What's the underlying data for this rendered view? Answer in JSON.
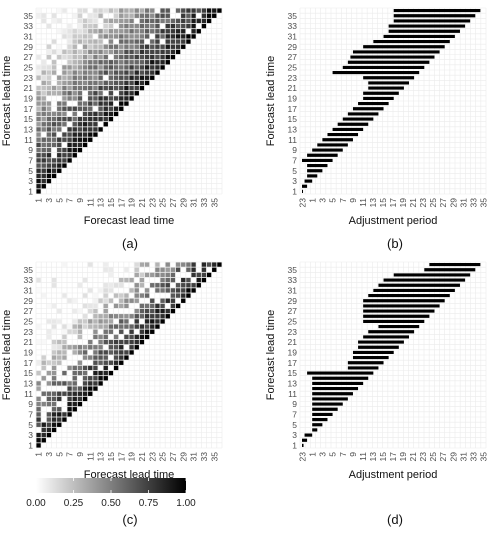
{
  "panel_labels": [
    "(a)",
    "(b)",
    "(c)",
    "(d)"
  ],
  "legend": {
    "ticks": [
      "0.00",
      "0.25",
      "0.50",
      "0.75",
      "1.00"
    ],
    "values": [
      0,
      0.25,
      0.5,
      0.75,
      1.0
    ],
    "color_low": "#ffffff",
    "color_high": "#000000"
  },
  "chart_data": [
    {
      "type": "heatmap",
      "panel": "(a)",
      "xlabel": "Forecast lead time",
      "ylabel": "Forecast lead time",
      "x_ticks": [
        "1",
        "3",
        "5",
        "7",
        "9",
        "11",
        "13",
        "15",
        "17",
        "19",
        "21",
        "23",
        "25",
        "27",
        "29",
        "31",
        "33",
        "35"
      ],
      "y_ticks": [
        "1",
        "3",
        "5",
        "7",
        "9",
        "11",
        "13",
        "15",
        "17",
        "19",
        "21",
        "23",
        "25",
        "27",
        "29",
        "31",
        "33",
        "35"
      ],
      "xlim": [
        1,
        36
      ],
      "ylim": [
        1,
        36
      ],
      "value_range": [
        0,
        1
      ],
      "grid": true,
      "description_of_values": "lower-triangle: value 1.0 on diagonal, decreasing with distance from diagonal"
    },
    {
      "type": "bar",
      "panel": "(b)",
      "orientation": "horizontal-range",
      "xlabel": "Adjustment period",
      "ylabel": "Forecast lead time",
      "x_ticks": [
        "23",
        "1",
        "3",
        "5",
        "7",
        "9",
        "11",
        "13",
        "15",
        "17",
        "19",
        "21",
        "23",
        "25",
        "27",
        "29",
        "31",
        "33",
        "35"
      ],
      "y_ticks": [
        "1",
        "3",
        "5",
        "7",
        "9",
        "11",
        "13",
        "15",
        "17",
        "19",
        "21",
        "23",
        "25",
        "27",
        "29",
        "31",
        "33",
        "35"
      ],
      "ylim": [
        1,
        36
      ],
      "grid": true,
      "rows": [
        {
          "lead": 1,
          "start": 0.0,
          "end": 0.2
        },
        {
          "lead": 2,
          "start": 0.0,
          "end": 1.0
        },
        {
          "lead": 3,
          "start": 0.5,
          "end": 2.0
        },
        {
          "lead": 4,
          "start": 1.0,
          "end": 3.0
        },
        {
          "lead": 5,
          "start": 1.0,
          "end": 4.0
        },
        {
          "lead": 6,
          "start": 1.0,
          "end": 5.0
        },
        {
          "lead": 7,
          "start": 0.0,
          "end": 6.0
        },
        {
          "lead": 8,
          "start": 1.0,
          "end": 7.0
        },
        {
          "lead": 9,
          "start": 2.0,
          "end": 8.0
        },
        {
          "lead": 10,
          "start": 3.0,
          "end": 9.0
        },
        {
          "lead": 11,
          "start": 4.0,
          "end": 10.0
        },
        {
          "lead": 12,
          "start": 5.0,
          "end": 11.0
        },
        {
          "lead": 13,
          "start": 6.0,
          "end": 12.0
        },
        {
          "lead": 14,
          "start": 7.0,
          "end": 13.0
        },
        {
          "lead": 15,
          "start": 8.0,
          "end": 14.0
        },
        {
          "lead": 16,
          "start": 9.0,
          "end": 15.0
        },
        {
          "lead": 17,
          "start": 10.0,
          "end": 16.0
        },
        {
          "lead": 18,
          "start": 11.0,
          "end": 17.0
        },
        {
          "lead": 19,
          "start": 12.0,
          "end": 18.0
        },
        {
          "lead": 20,
          "start": 12.0,
          "end": 19.0
        },
        {
          "lead": 21,
          "start": 13.0,
          "end": 20.0
        },
        {
          "lead": 22,
          "start": 13.0,
          "end": 21.0
        },
        {
          "lead": 23,
          "start": 12.0,
          "end": 22.0
        },
        {
          "lead": 24,
          "start": 6.0,
          "end": 23.0
        },
        {
          "lead": 25,
          "start": 8.0,
          "end": 24.0
        },
        {
          "lead": 26,
          "start": 9.0,
          "end": 25.0
        },
        {
          "lead": 27,
          "start": 9.5,
          "end": 26.0
        },
        {
          "lead": 28,
          "start": 10.0,
          "end": 27.0
        },
        {
          "lead": 29,
          "start": 12.0,
          "end": 28.0
        },
        {
          "lead": 30,
          "start": 14.0,
          "end": 29.0
        },
        {
          "lead": 31,
          "start": 16.0,
          "end": 30.0
        },
        {
          "lead": 32,
          "start": 17.0,
          "end": 31.0
        },
        {
          "lead": 33,
          "start": 17.0,
          "end": 32.0
        },
        {
          "lead": 34,
          "start": 18.0,
          "end": 33.0
        },
        {
          "lead": 35,
          "start": 18.0,
          "end": 34.0
        },
        {
          "lead": 36,
          "start": 18.0,
          "end": 35.0
        }
      ]
    },
    {
      "type": "heatmap",
      "panel": "(c)",
      "xlabel": "Forecast lead time",
      "ylabel": "Forecast lead time",
      "x_ticks": [
        "1",
        "3",
        "5",
        "7",
        "9",
        "11",
        "13",
        "15",
        "17",
        "19",
        "21",
        "23",
        "25",
        "27",
        "29",
        "31",
        "33",
        "35"
      ],
      "y_ticks": [
        "1",
        "3",
        "5",
        "7",
        "9",
        "11",
        "13",
        "15",
        "17",
        "19",
        "21",
        "23",
        "25",
        "27",
        "29",
        "31",
        "33",
        "35"
      ],
      "xlim": [
        1,
        36
      ],
      "ylim": [
        1,
        36
      ],
      "value_range": [
        0,
        1
      ],
      "grid": true,
      "description_of_values": "lower-triangle: value 1.0 on diagonal, decreasing with distance from diagonal, sparser off-diagonal"
    },
    {
      "type": "bar",
      "panel": "(d)",
      "orientation": "horizontal-range",
      "xlabel": "Adjustment period",
      "ylabel": "Forecast lead time",
      "x_ticks": [
        "23",
        "1",
        "3",
        "5",
        "7",
        "9",
        "11",
        "13",
        "15",
        "17",
        "19",
        "21",
        "23",
        "25",
        "27",
        "29",
        "31",
        "33",
        "35"
      ],
      "y_ticks": [
        "1",
        "3",
        "5",
        "7",
        "9",
        "11",
        "13",
        "15",
        "17",
        "19",
        "21",
        "23",
        "25",
        "27",
        "29",
        "31",
        "33",
        "35"
      ],
      "ylim": [
        1,
        36
      ],
      "grid": true,
      "rows": [
        {
          "lead": 1,
          "start": 0.0,
          "end": 0.3
        },
        {
          "lead": 2,
          "start": 0.0,
          "end": 1.0
        },
        {
          "lead": 3,
          "start": 0.5,
          "end": 2.0
        },
        {
          "lead": 4,
          "start": 2.0,
          "end": 3.0
        },
        {
          "lead": 5,
          "start": 2.0,
          "end": 4.0
        },
        {
          "lead": 6,
          "start": 2.0,
          "end": 5.0
        },
        {
          "lead": 7,
          "start": 2.0,
          "end": 6.0
        },
        {
          "lead": 8,
          "start": 2.0,
          "end": 7.0
        },
        {
          "lead": 9,
          "start": 2.0,
          "end": 8.0
        },
        {
          "lead": 10,
          "start": 2.0,
          "end": 9.0
        },
        {
          "lead": 11,
          "start": 2.0,
          "end": 10.0
        },
        {
          "lead": 12,
          "start": 2.0,
          "end": 11.0
        },
        {
          "lead": 13,
          "start": 2.0,
          "end": 12.0
        },
        {
          "lead": 14,
          "start": 2.0,
          "end": 13.0
        },
        {
          "lead": 15,
          "start": 1.0,
          "end": 14.0
        },
        {
          "lead": 16,
          "start": 9.0,
          "end": 15.0
        },
        {
          "lead": 17,
          "start": 9.0,
          "end": 16.0
        },
        {
          "lead": 18,
          "start": 10.0,
          "end": 17.0
        },
        {
          "lead": 19,
          "start": 10.0,
          "end": 18.0
        },
        {
          "lead": 20,
          "start": 11.0,
          "end": 19.0
        },
        {
          "lead": 21,
          "start": 11.0,
          "end": 20.0
        },
        {
          "lead": 22,
          "start": 12.0,
          "end": 21.0
        },
        {
          "lead": 23,
          "start": 13.0,
          "end": 22.0
        },
        {
          "lead": 24,
          "start": 15.0,
          "end": 23.0
        },
        {
          "lead": 25,
          "start": 12.0,
          "end": 24.0
        },
        {
          "lead": 26,
          "start": 12.0,
          "end": 25.0
        },
        {
          "lead": 27,
          "start": 12.0,
          "end": 26.0
        },
        {
          "lead": 28,
          "start": 12.0,
          "end": 27.0
        },
        {
          "lead": 29,
          "start": 12.0,
          "end": 28.0
        },
        {
          "lead": 30,
          "start": 13.0,
          "end": 29.0
        },
        {
          "lead": 31,
          "start": 14.0,
          "end": 30.0
        },
        {
          "lead": 32,
          "start": 15.0,
          "end": 31.0
        },
        {
          "lead": 33,
          "start": 16.0,
          "end": 32.0
        },
        {
          "lead": 34,
          "start": 18.0,
          "end": 33.0
        },
        {
          "lead": 35,
          "start": 24.0,
          "end": 34.0
        },
        {
          "lead": 36,
          "start": 25.0,
          "end": 35.0
        }
      ]
    }
  ]
}
